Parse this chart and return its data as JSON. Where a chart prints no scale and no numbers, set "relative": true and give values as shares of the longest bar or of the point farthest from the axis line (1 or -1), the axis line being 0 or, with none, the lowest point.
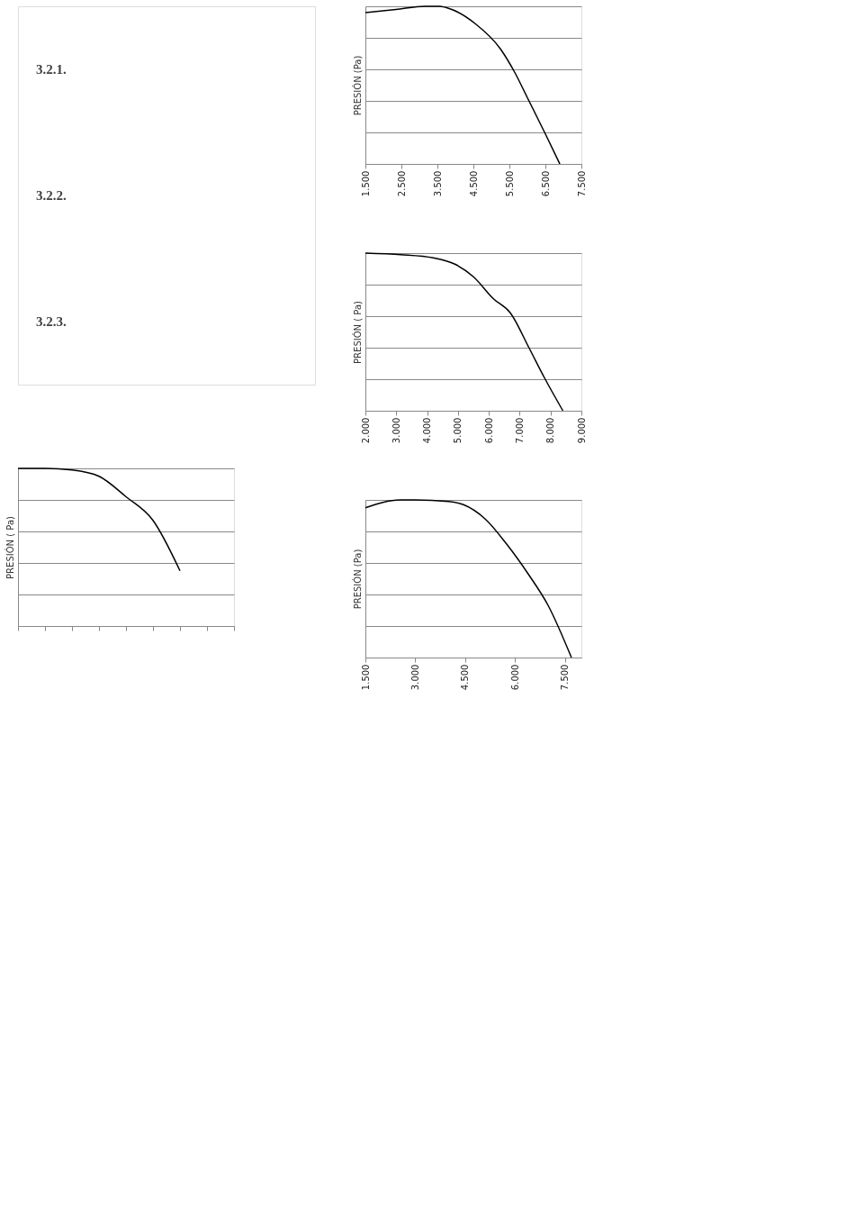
{
  "chart_data": [
    {
      "type": "other",
      "annotations": [
        "3.2.1.",
        "3.2.2.",
        "3.2.3."
      ]
    },
    {
      "type": "line",
      "ylabel": "PRESIÓN (Pa)",
      "relative": true,
      "grid": "y",
      "marker": "none",
      "line_style": "solid",
      "x": [
        1500,
        2350,
        3150,
        3550,
        3900,
        4550,
        5250,
        5650,
        6000,
        6500,
        6900
      ],
      "xlim": [
        1500,
        7500
      ],
      "xticks": [
        {
          "value": 1500,
          "label": "1.500"
        },
        {
          "value": 2500,
          "label": "2.500"
        },
        {
          "value": 3500,
          "label": "3.500"
        },
        {
          "value": 4500,
          "label": "4.500"
        },
        {
          "value": 5500,
          "label": "5.500"
        },
        {
          "value": 6500,
          "label": "6.500"
        },
        {
          "value": 7500,
          "label": "7.500"
        }
      ],
      "series": [
        {
          "color": "#000000",
          "values": [
            0.96,
            0.98,
            1,
            1,
            0.98,
            0.89,
            0.73,
            0.58,
            0.42,
            0.19,
            0
          ]
        }
      ]
    },
    {
      "type": "line",
      "ylabel": "PRESIÓN ( Pa)",
      "relative": true,
      "grid": "y",
      "marker": "none",
      "line_style": "solid",
      "x": [
        2000,
        3150,
        4200,
        4900,
        5500,
        6150,
        6700,
        7300,
        7800,
        8400
      ],
      "xlim": [
        2000,
        9000
      ],
      "xticks": [
        {
          "value": 2000,
          "label": "2.000"
        },
        {
          "value": 3000,
          "label": "3.000"
        },
        {
          "value": 4000,
          "label": "4.000"
        },
        {
          "value": 5000,
          "label": "5.000"
        },
        {
          "value": 6000,
          "label": "6.000"
        },
        {
          "value": 7000,
          "label": "7.000"
        },
        {
          "value": 8000,
          "label": "8.000"
        },
        {
          "value": 9000,
          "label": "9.000"
        }
      ],
      "series": [
        {
          "color": "#000000",
          "values": [
            1,
            0.99,
            0.97,
            0.93,
            0.85,
            0.71,
            0.62,
            0.4,
            0.21,
            0
          ]
        }
      ]
    },
    {
      "type": "line",
      "ylabel": "PRESIÓN (Pa)",
      "relative": true,
      "grid": "y",
      "marker": "none",
      "line_style": "solid",
      "x": [
        1500,
        2550,
        3000,
        4000,
        4450,
        5100,
        5750,
        6400,
        7000,
        7700
      ],
      "xlim": [
        1500,
        8000
      ],
      "xticks": [
        {
          "value": 1500,
          "label": "1.500"
        },
        {
          "value": 3000,
          "label": "3.000"
        },
        {
          "value": 4500,
          "label": "4.500"
        },
        {
          "value": 6000,
          "label": "6.000"
        },
        {
          "value": 7500,
          "label": "7.500"
        }
      ],
      "series": [
        {
          "color": "#000000",
          "values": [
            0.95,
            1,
            1,
            0.99,
            0.97,
            0.88,
            0.72,
            0.53,
            0.33,
            0
          ]
        }
      ]
    },
    {
      "type": "line",
      "ylabel": "PRESIÓN ( Pa)",
      "relative": true,
      "grid": "y",
      "marker": "none",
      "line_style": "solid",
      "categories": [
        null,
        null,
        null,
        null,
        null,
        null,
        null,
        null,
        null
      ],
      "series": [
        {
          "color": "#000000",
          "values": [
            1,
            1,
            0.99,
            0.95,
            0.82,
            0.67,
            0.35,
            null,
            null
          ]
        }
      ]
    }
  ]
}
